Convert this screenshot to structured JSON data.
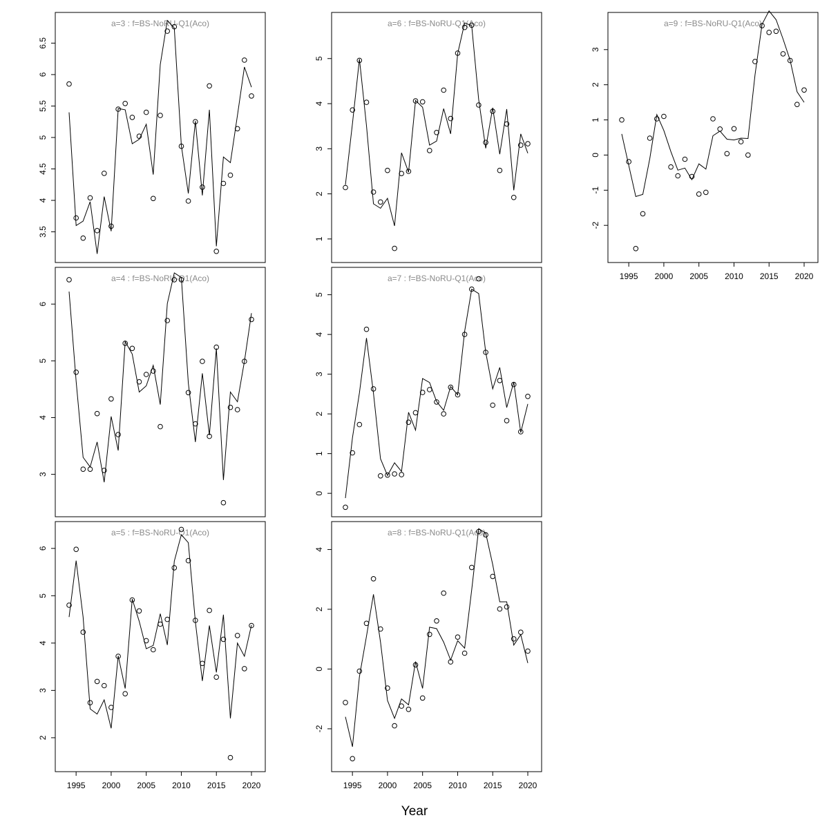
{
  "figure": {
    "xlabel": "Year"
  },
  "chart_data": [
    {
      "type": "line",
      "title": "a=3  :  f=BS-NoRU-Q1(Aco)",
      "xlim": [
        1994,
        2020
      ],
      "ylim": [
        3.1,
        6.9
      ],
      "yticks": [
        3.5,
        4.0,
        4.5,
        5.0,
        5.5,
        6.0,
        6.5
      ],
      "xticks": [],
      "x": [
        1994,
        1995,
        1996,
        1997,
        1998,
        1999,
        2000,
        2001,
        2002,
        2003,
        2004,
        2005,
        2006,
        2007,
        2008,
        2009,
        2010,
        2011,
        2012,
        2013,
        2014,
        2015,
        2016,
        2017,
        2018,
        2019,
        2020
      ],
      "observed": [
        5.85,
        3.72,
        3.4,
        4.04,
        3.52,
        4.43,
        3.59,
        5.45,
        5.54,
        5.32,
        5.02,
        5.4,
        4.03,
        5.35,
        6.69,
        6.76,
        4.86,
        3.99,
        5.25,
        4.21,
        5.82,
        3.19,
        4.27,
        4.4,
        5.14,
        6.23,
        5.66
      ],
      "fitted": [
        5.4,
        3.6,
        3.67,
        3.98,
        3.15,
        4.06,
        3.51,
        5.46,
        5.44,
        4.9,
        4.97,
        5.21,
        4.41,
        6.16,
        6.86,
        6.74,
        4.87,
        4.11,
        5.26,
        4.08,
        5.44,
        3.27,
        4.69,
        4.6,
        5.35,
        6.12,
        5.8
      ]
    },
    {
      "type": "line",
      "title": "a=4  :  f=BS-NoRU-Q1(Aco)",
      "xlim": [
        1994,
        2020
      ],
      "ylim": [
        2.35,
        6.55
      ],
      "yticks": [
        3,
        4,
        5,
        6
      ],
      "xticks": [],
      "x": [
        1994,
        1995,
        1996,
        1997,
        1998,
        1999,
        2000,
        2001,
        2002,
        2003,
        2004,
        2005,
        2006,
        2007,
        2008,
        2009,
        2010,
        2011,
        2012,
        2013,
        2014,
        2015,
        2016,
        2017,
        2018,
        2019,
        2020
      ],
      "observed": [
        6.43,
        4.8,
        3.09,
        3.09,
        4.07,
        3.07,
        4.33,
        3.7,
        5.31,
        5.22,
        4.63,
        4.76,
        4.82,
        3.84,
        5.71,
        6.43,
        6.43,
        4.44,
        3.89,
        4.99,
        3.67,
        5.24,
        2.5,
        4.18,
        4.14,
        4.99,
        5.73
      ],
      "fitted": [
        6.22,
        4.64,
        3.3,
        3.13,
        3.57,
        2.86,
        4.02,
        3.42,
        5.34,
        5.12,
        4.45,
        4.56,
        4.92,
        4.23,
        6.01,
        6.55,
        6.47,
        4.61,
        3.57,
        4.78,
        3.69,
        5.22,
        2.9,
        4.45,
        4.28,
        4.99,
        5.84
      ]
    },
    {
      "type": "line",
      "title": "a=5  :  f=BS-NoRU-Q1(Aco)",
      "xlim": [
        1994,
        2020
      ],
      "ylim": [
        1.4,
        6.45
      ],
      "yticks": [
        2,
        3,
        4,
        5,
        6
      ],
      "xticks": [
        1995,
        2000,
        2005,
        2010,
        2015,
        2020
      ],
      "x": [
        1994,
        1995,
        1996,
        1997,
        1998,
        1999,
        2000,
        2001,
        2002,
        2003,
        2004,
        2005,
        2006,
        2007,
        2008,
        2009,
        2010,
        2011,
        2012,
        2013,
        2014,
        2015,
        2016,
        2017,
        2018,
        2019,
        2020
      ],
      "observed": [
        4.8,
        5.98,
        4.23,
        2.74,
        3.19,
        3.1,
        2.64,
        3.72,
        2.93,
        4.91,
        4.68,
        4.05,
        3.86,
        4.4,
        4.5,
        5.59,
        6.4,
        5.74,
        4.48,
        3.57,
        4.69,
        3.28,
        4.08,
        1.58,
        4.16,
        3.46,
        4.37
      ],
      "fitted": [
        4.55,
        5.74,
        4.55,
        2.61,
        2.5,
        2.8,
        2.2,
        3.73,
        3.04,
        4.93,
        4.46,
        3.88,
        3.95,
        4.62,
        3.96,
        5.73,
        6.29,
        6.12,
        4.45,
        3.2,
        4.37,
        3.38,
        4.6,
        2.41,
        4.0,
        3.72,
        4.38
      ]
    },
    {
      "type": "line",
      "title": "a=6  :  f=BS-NoRU-Q1(Aco)",
      "xlim": [
        1994,
        2020
      ],
      "ylim": [
        0.6,
        5.9
      ],
      "yticks": [
        1,
        2,
        3,
        4,
        5
      ],
      "xticks": [],
      "x": [
        1994,
        1995,
        1996,
        1997,
        1998,
        1999,
        2000,
        2001,
        2002,
        2003,
        2004,
        2005,
        2006,
        2007,
        2008,
        2009,
        2010,
        2011,
        2012,
        2013,
        2014,
        2015,
        2016,
        2017,
        2018,
        2019,
        2020
      ],
      "observed": [
        2.14,
        3.86,
        4.96,
        4.03,
        2.04,
        1.82,
        2.52,
        0.79,
        2.45,
        2.5,
        4.06,
        4.04,
        2.96,
        3.36,
        4.3,
        3.67,
        5.12,
        5.69,
        5.74,
        3.97,
        3.14,
        3.83,
        2.52,
        3.55,
        1.92,
        3.08,
        3.11
      ],
      "fitted": [
        2.2,
        3.56,
        4.99,
        3.51,
        1.78,
        1.68,
        1.9,
        1.29,
        2.91,
        2.48,
        4.07,
        3.92,
        3.08,
        3.17,
        3.89,
        3.33,
        5.11,
        5.79,
        5.73,
        4.09,
        3.01,
        3.91,
        2.88,
        3.88,
        2.08,
        3.33,
        2.9
      ]
    },
    {
      "type": "line",
      "title": "a=7  :  f=BS-NoRU-Q1(Aco)",
      "xlim": [
        1994,
        2020
      ],
      "ylim": [
        -0.45,
        5.55
      ],
      "yticks": [
        0,
        1,
        2,
        3,
        4,
        5
      ],
      "xticks": [],
      "x": [
        1994,
        1995,
        1996,
        1997,
        1998,
        1999,
        2000,
        2001,
        2002,
        2003,
        2004,
        2005,
        2006,
        2007,
        2008,
        2009,
        2010,
        2011,
        2012,
        2013,
        2014,
        2015,
        2016,
        2017,
        2018,
        2019,
        2020
      ],
      "observed": [
        -0.35,
        1.02,
        1.73,
        4.13,
        2.63,
        0.44,
        0.46,
        0.49,
        0.47,
        1.79,
        2.03,
        2.54,
        2.61,
        2.3,
        2.0,
        2.67,
        2.48,
        4.0,
        5.14,
        5.4,
        3.55,
        2.22,
        2.84,
        1.83,
        2.74,
        1.55,
        2.44
      ],
      "fitted": [
        -0.12,
        1.4,
        2.53,
        3.91,
        2.52,
        0.87,
        0.45,
        0.77,
        0.55,
        2.04,
        1.59,
        2.89,
        2.79,
        2.31,
        2.09,
        2.69,
        2.48,
        4.08,
        5.14,
        5.03,
        3.55,
        2.63,
        3.17,
        2.16,
        2.8,
        1.53,
        2.25
      ]
    },
    {
      "type": "line",
      "title": "a=8  :  f=BS-NoRU-Q1(Aco)",
      "xlim": [
        1994,
        2020
      ],
      "ylim": [
        -3.25,
        4.75
      ],
      "yticks": [
        -2,
        0,
        2,
        4
      ],
      "xticks": [
        1995,
        2000,
        2005,
        2010,
        2015,
        2020
      ],
      "x": [
        1994,
        1995,
        1996,
        1997,
        1998,
        1999,
        2000,
        2001,
        2002,
        2003,
        2004,
        2005,
        2006,
        2007,
        2008,
        2009,
        2010,
        2011,
        2012,
        2013,
        2014,
        2015,
        2016,
        2017,
        2018,
        2019,
        2020
      ],
      "observed": [
        -1.12,
        -3.0,
        -0.07,
        1.53,
        3.02,
        1.34,
        -0.64,
        -1.9,
        -1.24,
        -1.35,
        0.14,
        -0.97,
        1.16,
        1.61,
        2.54,
        0.24,
        1.07,
        0.53,
        3.4,
        4.6,
        4.49,
        3.1,
        2.01,
        2.08,
        1.01,
        1.23,
        0.6
      ],
      "fitted": [
        -1.6,
        -2.6,
        -0.25,
        1.1,
        2.5,
        0.9,
        -1.05,
        -1.65,
        -1.0,
        -1.2,
        0.25,
        -0.65,
        1.4,
        1.35,
        0.9,
        0.3,
        0.95,
        0.7,
        2.65,
        4.7,
        4.55,
        3.5,
        2.25,
        2.25,
        0.8,
        1.15,
        0.2
      ]
    },
    {
      "type": "line",
      "title": "a=9  :  f=BS-NoRU-Q1(Aco)",
      "xlim": [
        1994,
        2020
      ],
      "ylim": [
        -2.9,
        3.9
      ],
      "yticks": [
        -2,
        -1,
        0,
        1,
        2,
        3
      ],
      "xticks": [
        1995,
        2000,
        2005,
        2010,
        2015,
        2020
      ],
      "x": [
        1994,
        1995,
        1996,
        1997,
        1998,
        1999,
        2000,
        2001,
        2002,
        2003,
        2004,
        2005,
        2006,
        2007,
        2008,
        2009,
        2010,
        2011,
        2012,
        2013,
        2014,
        2015,
        2016,
        2017,
        2018,
        2019,
        2020
      ],
      "observed": [
        1.0,
        -0.19,
        -2.66,
        -1.67,
        0.48,
        1.03,
        1.1,
        -0.34,
        -0.59,
        -0.12,
        -0.61,
        -1.11,
        -1.06,
        1.03,
        0.74,
        0.04,
        0.75,
        0.38,
        0.0,
        2.66,
        3.68,
        3.49,
        3.52,
        2.88,
        2.69,
        1.44,
        1.85
      ],
      "fitted": [
        0.6,
        -0.3,
        -1.18,
        -1.12,
        -0.1,
        1.15,
        0.7,
        0.1,
        -0.43,
        -0.37,
        -0.7,
        -0.25,
        -0.4,
        0.55,
        0.68,
        0.45,
        0.43,
        0.48,
        0.47,
        2.28,
        3.72,
        4.1,
        3.85,
        3.3,
        2.7,
        1.8,
        1.5
      ]
    }
  ]
}
